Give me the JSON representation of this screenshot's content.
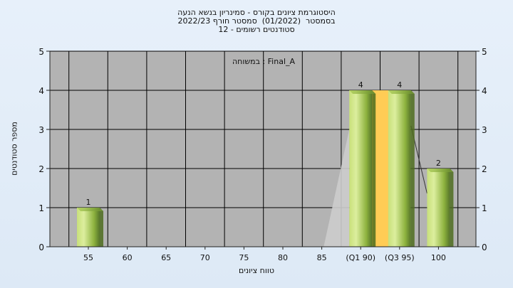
{
  "chart_data": {
    "type": "bar",
    "title_lines": [
      "היסטוגרמת ציונים בקורס - סמינריון בנשא הנעה",
      "בסמסטר  (01/2022)  סמסטר חורף 2022/23",
      "סטודנטים רשומים - 12"
    ],
    "annotation": "במשוחה : Final_A",
    "xlabel": "טווח ציונים",
    "ylabel": "מספר סטודנטים",
    "ylim": [
      0,
      5
    ],
    "y_ticks": [
      "0",
      "1",
      "2",
      "3",
      "4",
      "5"
    ],
    "categories": [
      "55",
      "60",
      "65",
      "70",
      "75",
      "80",
      "85",
      "(Q1 90)",
      "(Q3 95)",
      "100"
    ],
    "values": [
      1,
      0,
      0,
      0,
      0,
      0,
      0,
      4,
      4,
      2
    ],
    "value_labels": [
      "1",
      "",
      "",
      "",
      "",
      "",
      "",
      "4",
      "4",
      "2"
    ],
    "quartile_band": {
      "from": "(Q1 90)",
      "to": "(Q3 95)",
      "color": "#ffcc55"
    },
    "colors": {
      "plot_bg": "#b3b3b3",
      "bar": "#9bc24a",
      "bar_light": "#d8ec9a",
      "bar_dark": "#4e6c1e",
      "grid": "#000000",
      "page_bg": "#e2ecf8"
    },
    "grid": true
  }
}
